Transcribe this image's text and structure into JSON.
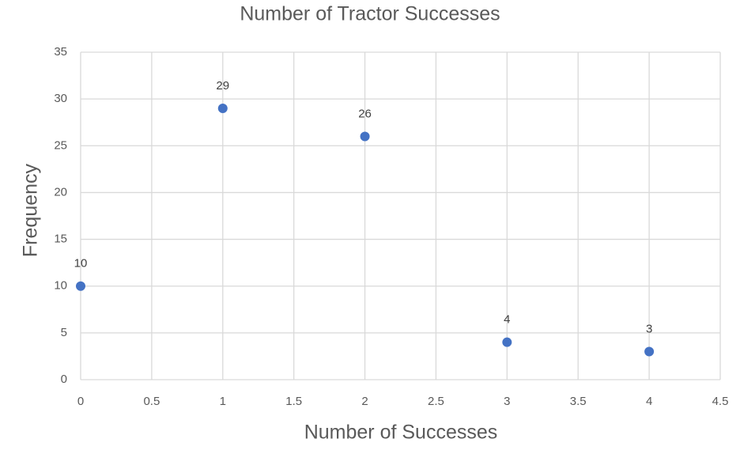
{
  "chart_data": {
    "type": "scatter",
    "title": "Number of Tractor Successes",
    "x_label": "Number of Successes",
    "y_label": "Frequency",
    "x": [
      0,
      1,
      2,
      3,
      4
    ],
    "values": [
      10,
      29,
      26,
      4,
      3
    ],
    "color": "#4472c4",
    "xlim": [
      0,
      4.5
    ],
    "xticks": [
      0,
      0.5,
      1,
      1.5,
      2,
      2.5,
      3,
      3.5,
      4,
      4.5
    ],
    "ylim": [
      0,
      35
    ],
    "yticks": [
      0,
      5,
      10,
      15,
      20,
      25,
      30,
      35
    ],
    "grid": true,
    "data_labels": true
  }
}
